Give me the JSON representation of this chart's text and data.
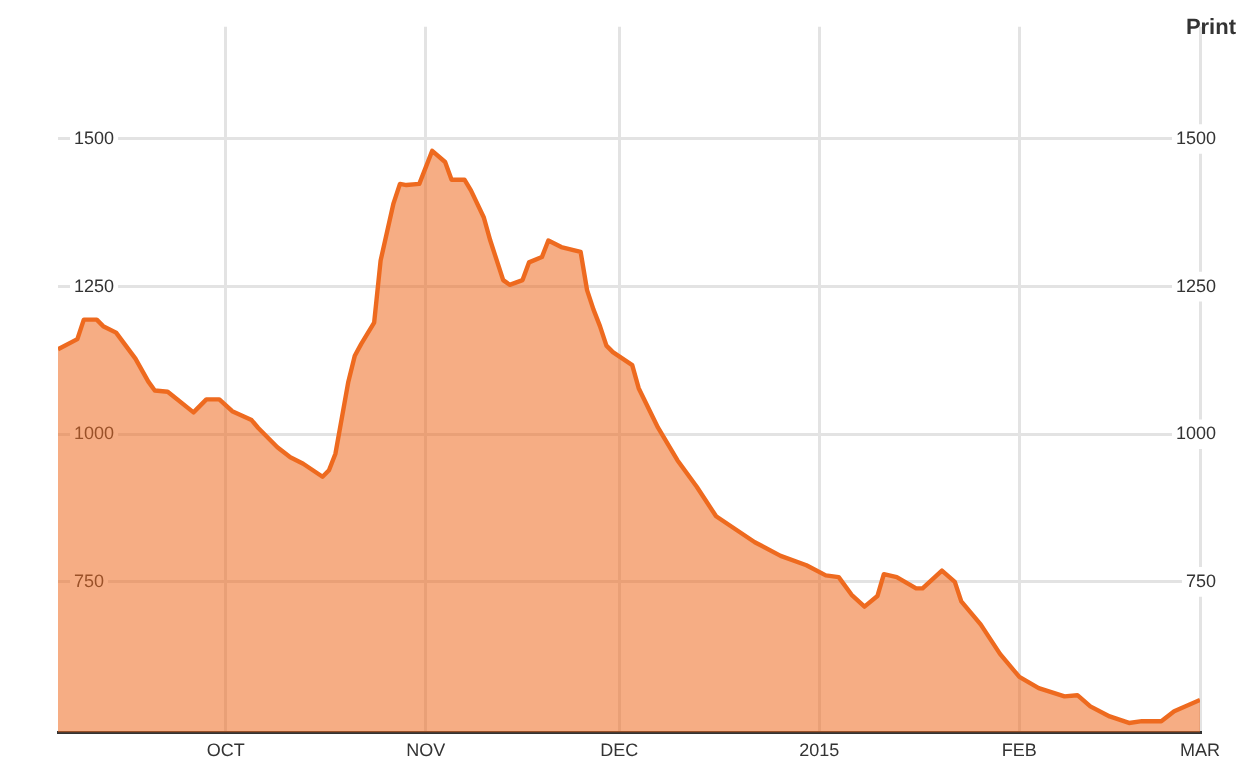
{
  "chart_data": {
    "type": "area",
    "x": [
      "2014-09-05",
      "2014-09-08",
      "2014-09-09",
      "2014-09-11",
      "2014-09-12",
      "2014-09-14",
      "2014-09-17",
      "2014-09-19",
      "2014-09-20",
      "2014-09-22",
      "2014-09-26",
      "2014-09-28",
      "2014-09-30",
      "2014-10-02",
      "2014-10-05",
      "2014-10-06",
      "2014-10-09",
      "2014-10-11",
      "2014-10-13",
      "2014-10-16",
      "2014-10-17",
      "2014-10-18",
      "2014-10-20",
      "2014-10-21",
      "2014-10-22",
      "2014-10-24",
      "2014-10-25",
      "2014-10-27",
      "2014-10-28",
      "2014-10-29",
      "2014-10-31",
      "2014-11-02",
      "2014-11-04",
      "2014-11-05",
      "2014-11-07",
      "2014-11-08",
      "2014-11-10",
      "2014-11-11",
      "2014-11-13",
      "2014-11-14",
      "2014-11-16",
      "2014-11-17",
      "2014-11-19",
      "2014-11-20",
      "2014-11-22",
      "2014-11-25",
      "2014-11-26",
      "2014-11-27",
      "2014-11-28",
      "2014-11-29",
      "2014-11-30",
      "2014-12-03",
      "2014-12-04",
      "2014-12-07",
      "2014-12-10",
      "2014-12-13",
      "2014-12-16",
      "2014-12-19",
      "2014-12-22",
      "2014-12-26",
      "2014-12-30",
      "2015-01-02",
      "2015-01-04",
      "2015-01-06",
      "2015-01-08",
      "2015-01-10",
      "2015-01-11",
      "2015-01-13",
      "2015-01-16",
      "2015-01-17",
      "2015-01-20",
      "2015-01-22",
      "2015-01-23",
      "2015-01-26",
      "2015-01-29",
      "2015-02-01",
      "2015-02-04",
      "2015-02-08",
      "2015-02-10",
      "2015-02-12",
      "2015-02-15",
      "2015-02-18",
      "2015-02-20",
      "2015-02-23",
      "2015-02-25",
      "2015-03-01"
    ],
    "series": [
      {
        "color": "#ee6a1f",
        "values": [
          1144,
          1161,
          1194,
          1194,
          1183,
          1172,
          1128,
          1089,
          1074,
          1072,
          1037,
          1059,
          1059,
          1039,
          1024,
          1011,
          978,
          961,
          950,
          928,
          939,
          967,
          1089,
          1133,
          1153,
          1189,
          1294,
          1391,
          1424,
          1422,
          1424,
          1480,
          1461,
          1431,
          1431,
          1413,
          1367,
          1328,
          1261,
          1253,
          1261,
          1291,
          1300,
          1328,
          1317,
          1309,
          1244,
          1211,
          1183,
          1150,
          1139,
          1117,
          1078,
          1011,
          956,
          911,
          861,
          839,
          817,
          794,
          778,
          761,
          758,
          728,
          708,
          726,
          763,
          758,
          739,
          739,
          769,
          750,
          717,
          678,
          628,
          589,
          570,
          556,
          558,
          539,
          522,
          511,
          514,
          514,
          531,
          550
        ]
      }
    ],
    "xlim": [
      "2014-09-05",
      "2015-03-01"
    ],
    "xticks": [
      {
        "value": "2014-10-01",
        "label": "OCT"
      },
      {
        "value": "2014-11-01",
        "label": "NOV"
      },
      {
        "value": "2014-12-01",
        "label": "DEC"
      },
      {
        "value": "2015-01-01",
        "label": "2015"
      },
      {
        "value": "2015-02-01",
        "label": "FEB"
      },
      {
        "value": "2015-03-01",
        "label": "MAR"
      }
    ],
    "ylim": [
      495,
      1690
    ],
    "yticks": [
      750,
      1000,
      1250,
      1500
    ],
    "y2lim": [
      495,
      1690
    ],
    "y2ticks": [
      750,
      1000,
      1250,
      1500
    ],
    "grid": true,
    "legend": false,
    "marker": "none",
    "line_style": "solid",
    "annotations": [
      "Print"
    ]
  }
}
